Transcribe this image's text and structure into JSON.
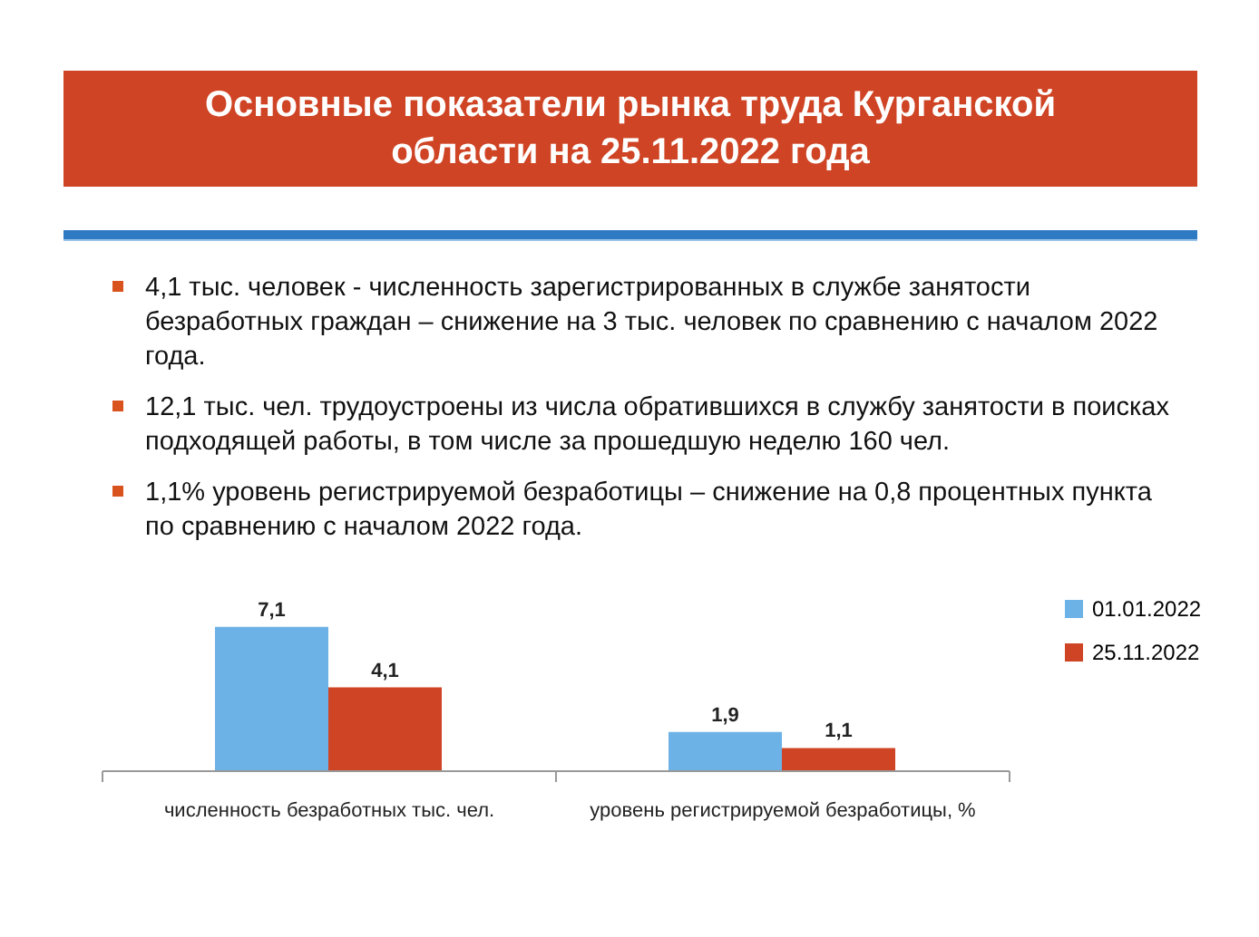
{
  "chart_data": {
    "type": "bar",
    "title": "Основные показатели рынка труда Курганской области на 25.11.2022 года",
    "annotations": [
      "4,1 тыс. человек  - численность зарегистрированных в службе занятости безработных граждан – снижение на 3 тыс. человек по сравнению с началом 2022 года.",
      "12,1 тыс. чел. трудоустроены из числа обратившихся в службу занятости в поисках подходящей работы, в том числе за прошедшую неделю 160 чел.",
      "1,1% уровень регистрируемой безработицы – снижение на 0,8 процентных пункта по сравнению с началом 2022 года."
    ],
    "categories": [
      "численность безработных тыс. чел.",
      "уровень регистрируемой безработицы, %"
    ],
    "series": [
      {
        "name": "01.01.2022",
        "color": "#6cb2e6",
        "values": [
          7.1,
          1.9
        ],
        "value_labels": [
          "7,1",
          "1,9"
        ]
      },
      {
        "name": "25.11.2022",
        "color": "#cf4424",
        "values": [
          4.1,
          1.1
        ],
        "value_labels": [
          "4,1",
          "1,1"
        ]
      }
    ],
    "legend": "right"
  }
}
